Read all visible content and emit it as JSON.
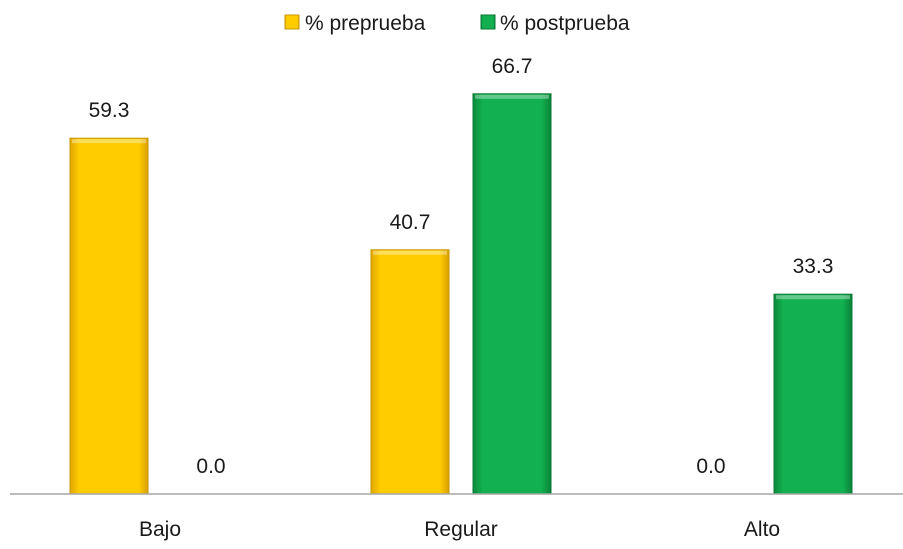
{
  "colors": {
    "preprueba": "#ffc800",
    "postprueba": "#10a64a",
    "axis": "#a6a6a6"
  },
  "chart_data": {
    "type": "bar",
    "categories": [
      "Bajo",
      "Regular",
      "Alto"
    ],
    "series": [
      {
        "name": "% preprueba",
        "values": [
          59.3,
          40.7,
          0.0
        ],
        "labels": [
          "59.3",
          "40.7",
          "0.0"
        ]
      },
      {
        "name": "% postprueba",
        "values": [
          0.0,
          66.7,
          33.3
        ],
        "labels": [
          "0.0",
          "66.7",
          "33.3"
        ]
      }
    ],
    "ylim": [
      0,
      70
    ],
    "legend_position": "top-center",
    "grid": false,
    "title": "",
    "xlabel": "",
    "ylabel": ""
  }
}
